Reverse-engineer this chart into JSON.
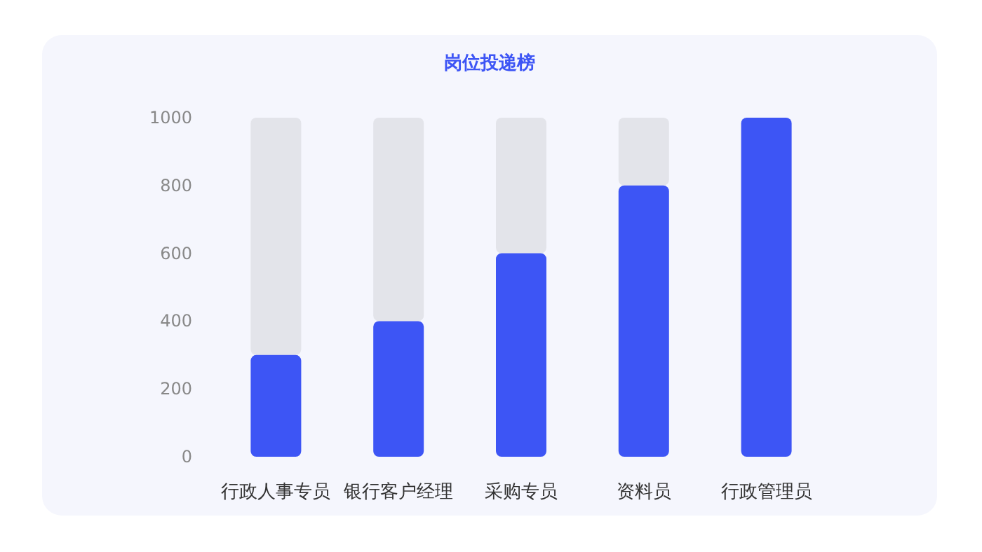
{
  "chart_data": {
    "type": "bar",
    "title": "岗位投递榜",
    "categories": [
      "行政人事专员",
      "银行客户经理",
      "采购专员",
      "资料员",
      "行政管理员"
    ],
    "stacked": true,
    "ylim": [
      0,
      1000
    ],
    "yticks": [
      0,
      200,
      400,
      600,
      800,
      1000
    ],
    "series": [
      {
        "color": "#3d55f5",
        "values": [
          300,
          400,
          600,
          800,
          1000
        ]
      },
      {
        "color": "#e3e4ea",
        "values": [
          700,
          600,
          400,
          200,
          0
        ]
      }
    ]
  }
}
